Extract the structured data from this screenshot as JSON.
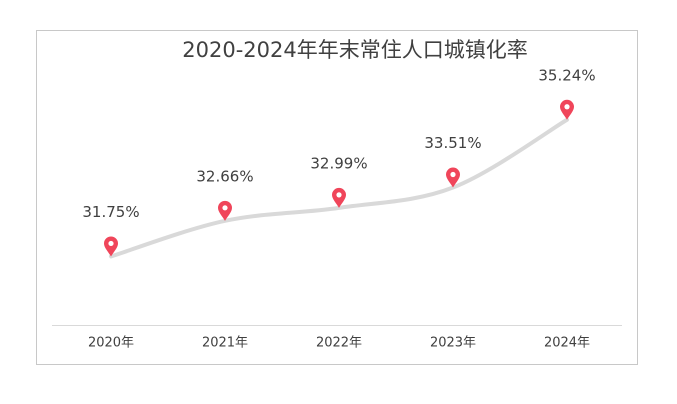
{
  "chart_data": {
    "type": "line",
    "title": "2020-2024年年末常住人口城镇化率",
    "categories": [
      "2020年",
      "2021年",
      "2022年",
      "2023年",
      "2024年"
    ],
    "values": [
      31.75,
      32.66,
      32.99,
      33.51,
      35.24
    ],
    "value_labels": [
      "31.75%",
      "32.66%",
      "32.99%",
      "33.51%",
      "35.24%"
    ],
    "color": "#d9d9d9",
    "marker_color": "#f0455a",
    "smooth": true,
    "ylim": [
      30,
      36
    ]
  }
}
